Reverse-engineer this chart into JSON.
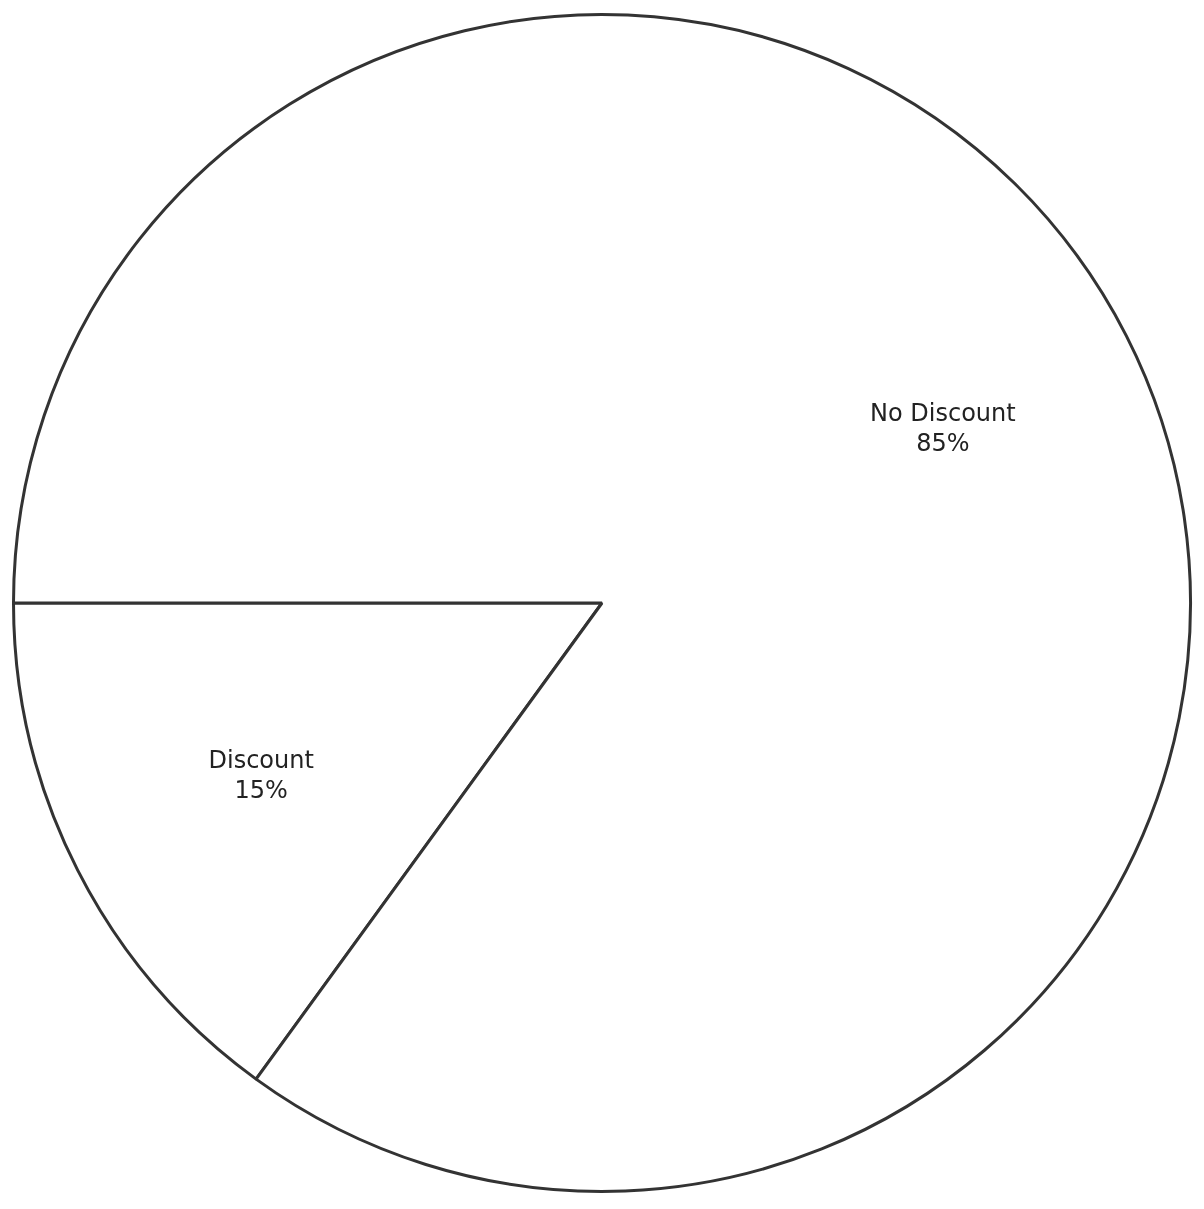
{
  "chart_data": {
    "type": "pie",
    "categories": [
      "Discount",
      "No Discount"
    ],
    "values": [
      15,
      85
    ],
    "value_labels": [
      "15%",
      "85%"
    ],
    "colors": [
      "#ffffff",
      "#ffffff"
    ],
    "legend": false
  }
}
